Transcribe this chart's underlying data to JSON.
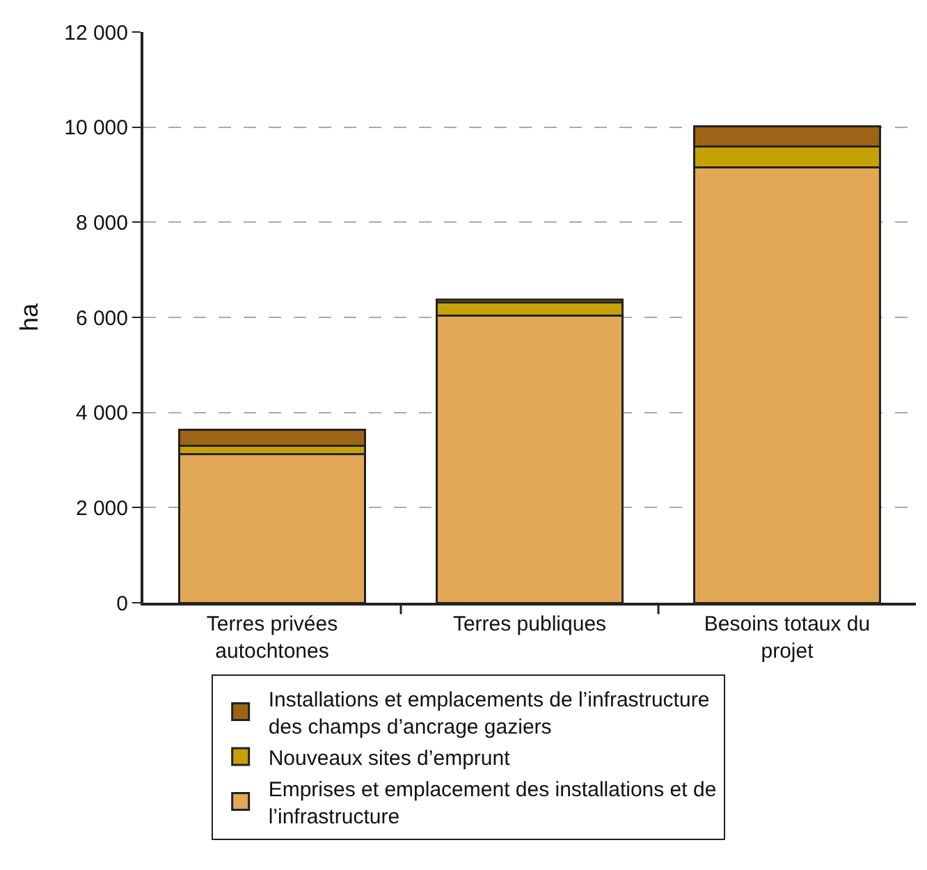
{
  "chart_data": {
    "type": "bar",
    "stacked": true,
    "ylabel": "ha",
    "categories": [
      "Terres privées autochtones",
      "Terres publiques",
      "Besoins totaux du projet"
    ],
    "series": [
      {
        "name": "Emprises et emplacement des installations et de l’infrastructure",
        "color": "#e2a757",
        "values": [
          3120,
          6040,
          9160
        ]
      },
      {
        "name": "Nouveaux sites d’emprunt",
        "color": "#c4a205",
        "values": [
          180,
          270,
          440
        ]
      },
      {
        "name": "Installations et emplacements de l’infrastructure des champs d’ancrage gaziers",
        "color": "#9e6315",
        "values": [
          340,
          70,
          420
        ]
      }
    ],
    "ylim": [
      0,
      12000
    ],
    "yticks": [
      {
        "value": 0,
        "label": "0"
      },
      {
        "value": 2000,
        "label": "2 000"
      },
      {
        "value": 4000,
        "label": "4 000"
      },
      {
        "value": 6000,
        "label": "6 000"
      },
      {
        "value": 8000,
        "label": "8 000"
      },
      {
        "value": 10000,
        "label": "10 000"
      },
      {
        "value": 12000,
        "label": "12 000"
      }
    ],
    "grid": "y",
    "legend": "bottom"
  }
}
